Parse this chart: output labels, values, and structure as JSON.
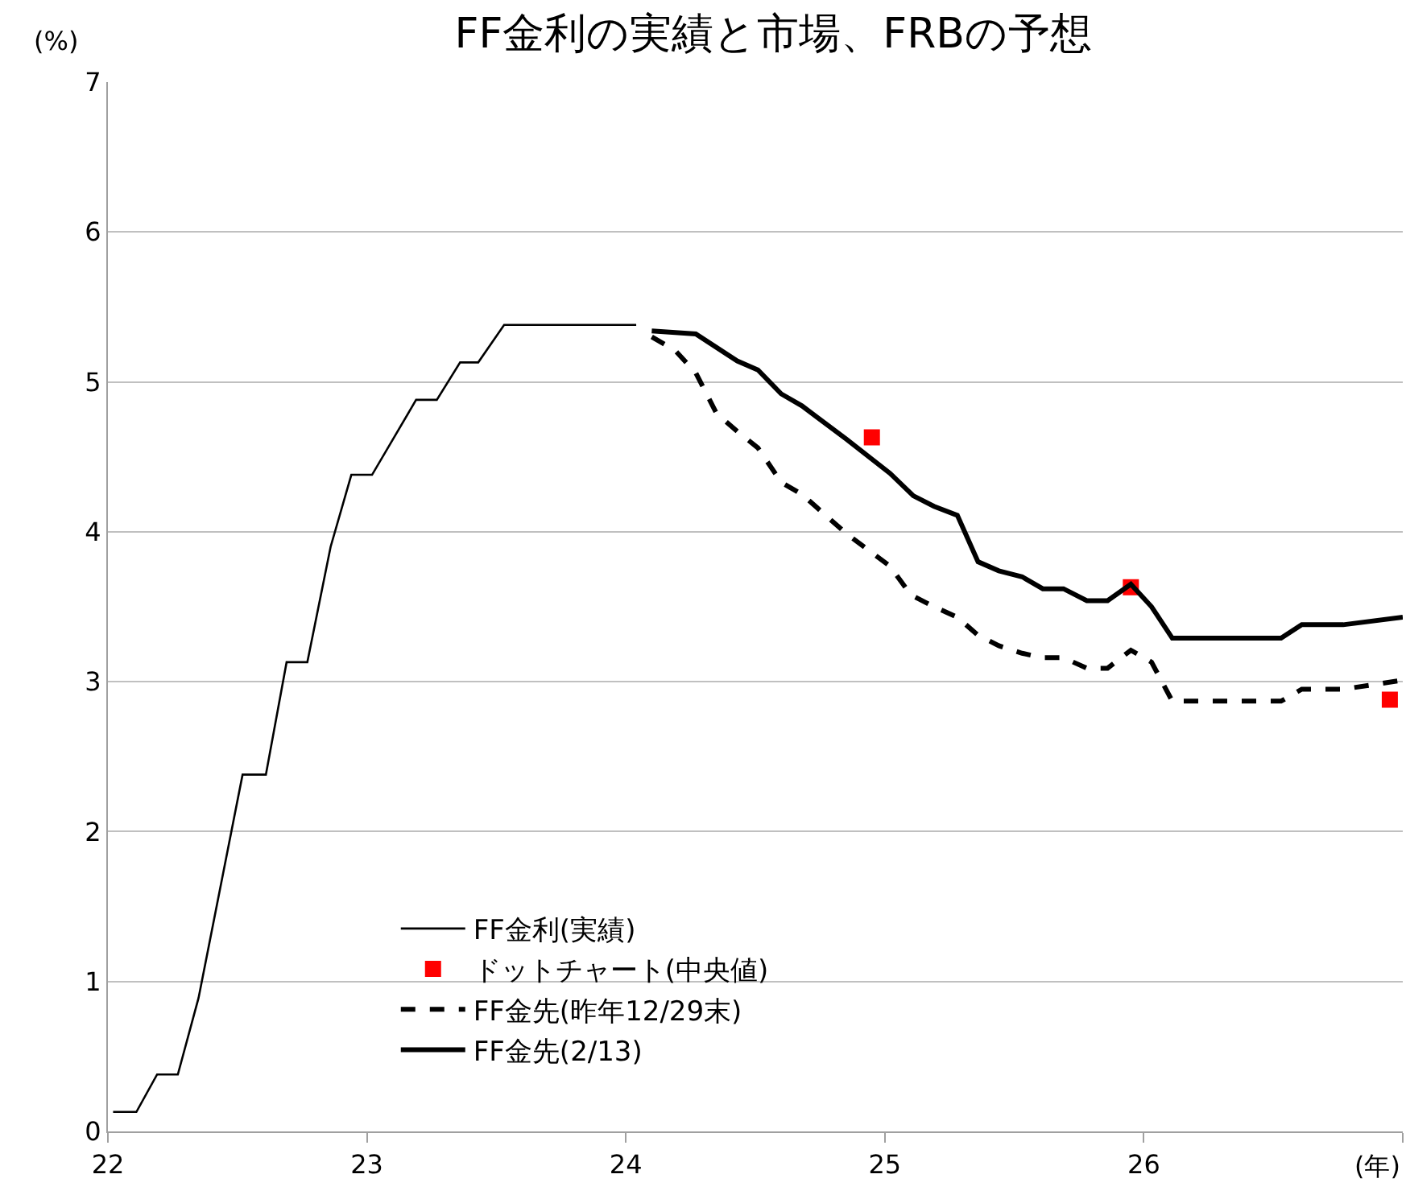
{
  "chart_data": {
    "type": "line",
    "title": "FF金利の実績と市場、FRBの予想",
    "xlabel": "(年)",
    "ylabel": "(%)",
    "xlim": [
      22,
      27
    ],
    "xticks": [
      22,
      23,
      24,
      25,
      26,
      {
        "value": 27,
        "label": null
      }
    ],
    "ylim": [
      0,
      7
    ],
    "yticks": [
      0,
      1,
      2,
      3,
      4,
      5,
      6,
      7
    ],
    "grid": "y",
    "legend": "bottom left",
    "series": [
      {
        "name": "FF金利(実績)",
        "line_style": "solid",
        "marker": "none",
        "color": "#000000",
        "x": [
          22.02,
          22.11,
          22.19,
          22.27,
          22.35,
          22.52,
          22.61,
          22.69,
          22.77,
          22.86,
          22.94,
          23.02,
          23.19,
          23.27,
          23.36,
          23.43,
          23.53,
          24.04
        ],
        "values": [
          0.13,
          0.13,
          0.38,
          0.38,
          0.89,
          2.38,
          2.38,
          3.13,
          3.13,
          3.9,
          4.38,
          4.38,
          4.88,
          4.88,
          5.13,
          5.13,
          5.38,
          5.38
        ]
      },
      {
        "name": "ドットチャート(中央値)",
        "type": "scatter",
        "marker": "square",
        "color": "#ff0000",
        "x": [
          24.95,
          25.95,
          26.95
        ],
        "values": [
          4.63,
          3.63,
          2.88
        ]
      },
      {
        "name": "FF金先(昨年12/29末)",
        "line_style": "dashed",
        "marker": "none",
        "color": "#000000",
        "x": [
          24.1,
          24.19,
          24.27,
          24.35,
          24.43,
          24.51,
          24.6,
          24.68,
          24.85,
          25.02,
          25.1,
          25.19,
          25.28,
          25.36,
          25.44,
          25.53,
          25.61,
          25.69,
          25.78,
          25.86,
          25.95,
          26.03,
          26.11,
          26.53,
          26.61,
          26.77,
          27.0
        ],
        "values": [
          5.3,
          5.21,
          5.06,
          4.79,
          4.67,
          4.56,
          4.33,
          4.25,
          3.99,
          3.77,
          3.58,
          3.5,
          3.43,
          3.31,
          3.24,
          3.19,
          3.16,
          3.16,
          3.09,
          3.09,
          3.21,
          3.13,
          2.87,
          2.87,
          2.95,
          2.95,
          3.01
        ]
      },
      {
        "name": "FF金先(2/13)",
        "line_style": "solid",
        "marker": "none",
        "color": "#000000",
        "x": [
          24.1,
          24.27,
          24.43,
          24.51,
          24.6,
          24.68,
          24.85,
          25.02,
          25.11,
          25.19,
          25.28,
          25.36,
          25.44,
          25.53,
          25.61,
          25.69,
          25.78,
          25.86,
          25.95,
          26.03,
          26.11,
          26.53,
          26.61,
          26.77,
          27.0
        ],
        "values": [
          5.34,
          5.32,
          5.14,
          5.08,
          4.92,
          4.84,
          4.62,
          4.39,
          4.24,
          4.17,
          4.11,
          3.8,
          3.74,
          3.7,
          3.62,
          3.62,
          3.54,
          3.54,
          3.65,
          3.5,
          3.29,
          3.29,
          3.38,
          3.38,
          3.43
        ]
      }
    ]
  }
}
